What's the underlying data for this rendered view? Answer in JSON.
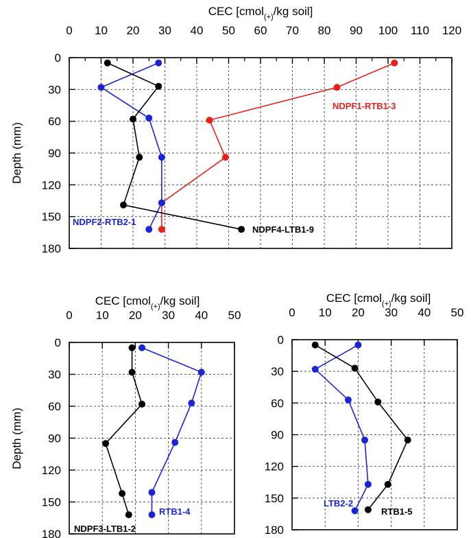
{
  "chart_data": [
    {
      "type": "line",
      "xlabel": "CEC [cmol(+)/kg soil]",
      "ylabel": "Depth (mm)",
      "xlim": [
        0,
        120
      ],
      "ylim": [
        0,
        180
      ],
      "xticks": [
        0,
        10,
        20,
        30,
        40,
        50,
        60,
        70,
        80,
        90,
        100,
        110,
        120
      ],
      "yticks": [
        0,
        30,
        60,
        90,
        120,
        150,
        180
      ],
      "x_axis_position": "top",
      "y_axis_inverted": true,
      "grid": true,
      "series": [
        {
          "name": "NDPF1-RTB1-3",
          "color": "#e8211b",
          "points": [
            [
              102,
              5
            ],
            [
              84,
              28
            ],
            [
              44,
              59
            ],
            [
              49,
              94
            ],
            [
              29,
              137
            ],
            [
              29,
              162
            ]
          ]
        },
        {
          "name": "NDPF2-RTB2-1",
          "color": "#1a24d6",
          "points": [
            [
              28,
              5
            ],
            [
              10,
              28
            ],
            [
              25,
              57
            ],
            [
              29,
              94
            ],
            [
              29,
              137
            ],
            [
              25,
              162
            ]
          ]
        },
        {
          "name": "NDPF4-LTB1-9",
          "color": "#000000",
          "points": [
            [
              12,
              5
            ],
            [
              28,
              27
            ],
            [
              20,
              58
            ],
            [
              22,
              94
            ],
            [
              17,
              139
            ],
            [
              54,
              162
            ]
          ]
        }
      ]
    },
    {
      "type": "line",
      "xlabel": "CEC [cmol(+)/kg soil]",
      "ylabel": "Depth (mm)",
      "xlim": [
        0,
        50
      ],
      "ylim": [
        0,
        180
      ],
      "xticks": [
        0,
        10,
        20,
        30,
        40,
        50
      ],
      "yticks": [
        0,
        30,
        60,
        90,
        120,
        150,
        180
      ],
      "x_axis_position": "top",
      "y_axis_inverted": true,
      "grid": true,
      "series": [
        {
          "name": "RTB1-4",
          "color": "#1a24d6",
          "points": [
            [
              22,
              5
            ],
            [
              40,
              28
            ],
            [
              37,
              57
            ],
            [
              32,
              94
            ],
            [
              25,
              141
            ],
            [
              25,
              162
            ]
          ]
        },
        {
          "name": "NDPF3-LTB1-2",
          "color": "#000000",
          "points": [
            [
              19,
              5
            ],
            [
              19,
              28
            ],
            [
              22,
              58
            ],
            [
              11,
              95
            ],
            [
              16,
              142
            ],
            [
              18,
              162
            ]
          ]
        }
      ]
    },
    {
      "type": "line",
      "xlabel": "CEC [cmol(+)/kg soil]",
      "ylabel": "",
      "xlim": [
        0,
        50
      ],
      "ylim": [
        0,
        180
      ],
      "xticks": [
        0,
        10,
        20,
        30,
        40,
        50
      ],
      "yticks": [
        0,
        30,
        60,
        90,
        120,
        150,
        180
      ],
      "x_axis_position": "top",
      "y_axis_inverted": true,
      "grid": true,
      "series": [
        {
          "name": "LTB2-2",
          "color": "#1a24d6",
          "points": [
            [
              20,
              5
            ],
            [
              7,
              28
            ],
            [
              17,
              57
            ],
            [
              22,
              95
            ],
            [
              23,
              137
            ],
            [
              19,
              162
            ]
          ]
        },
        {
          "name": "RTB1-5",
          "color": "#000000",
          "points": [
            [
              7,
              5
            ],
            [
              19,
              27
            ],
            [
              26,
              59
            ],
            [
              35,
              95
            ],
            [
              29,
              137
            ],
            [
              23,
              161
            ]
          ]
        }
      ]
    }
  ]
}
